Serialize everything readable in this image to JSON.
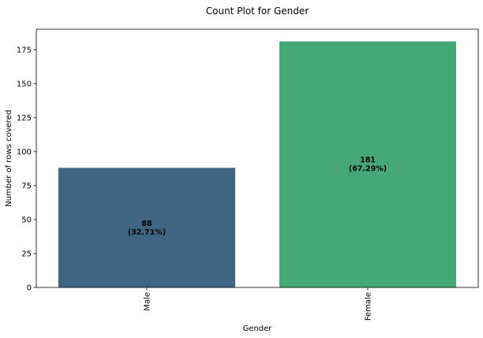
{
  "chart_data": {
    "type": "bar",
    "title": "Count Plot for Gender",
    "xlabel": "Gender",
    "ylabel": "Number of rows covered",
    "categories": [
      "Male",
      "Female"
    ],
    "values": [
      88,
      181
    ],
    "data_labels": [
      "88\n(32.71%)",
      "181\n(67.29%)"
    ],
    "colors": [
      "#3e6682",
      "#45a877"
    ],
    "ylim": [
      0,
      190
    ],
    "yticks": [
      0,
      25,
      50,
      75,
      100,
      125,
      150,
      175
    ],
    "grid": false,
    "legend": "none"
  }
}
